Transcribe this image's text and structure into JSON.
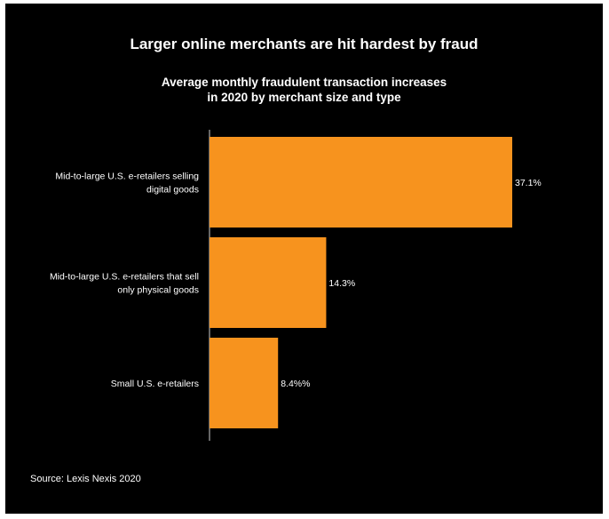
{
  "chart_data": {
    "type": "bar",
    "orientation": "horizontal",
    "title": "Larger online merchants are hit hardest by fraud",
    "subtitle": [
      "Average monthly fraudulent transaction increases",
      "in 2020 by merchant size and type"
    ],
    "categories": [
      [
        "Mid-to-large U.S. e-retailers selling",
        "digital goods"
      ],
      [
        "Mid-to-large U.S. e-retailers that sell",
        "only physical goods"
      ],
      [
        "Small U.S. e-retailers"
      ]
    ],
    "values": [
      37.1,
      14.3,
      8.4
    ],
    "value_labels": [
      "37.1%",
      "14.3%",
      "8.4%%"
    ],
    "xlim": [
      0,
      37.1
    ],
    "bar_color": "#F7931E",
    "background_color": "#000000",
    "grid": false,
    "source": "Source: Lexis Nexis 2020"
  }
}
